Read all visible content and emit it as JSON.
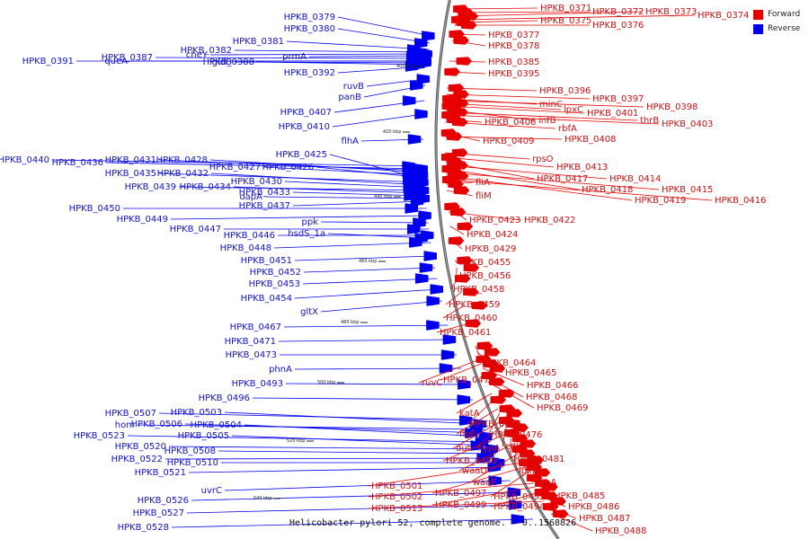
{
  "legend": {
    "forward": {
      "label": "Forward",
      "color": "#e60000"
    },
    "reverse": {
      "label": "Reverse",
      "color": "#0000ee"
    }
  },
  "caption": "Helicobacter pylori 52, complete genome. - 0..1568826",
  "ticks": [
    "400 kbp",
    "420 kbp",
    "440 kbp",
    "460 kbp",
    "480 kbp",
    "500 kbp",
    "520 kbp",
    "540 kbp"
  ],
  "reverse_genes": [
    "HPKB_0379",
    "HPKB_0380",
    "HPKB_0381",
    "cheY",
    "HPKB_0382",
    "prmA",
    "HPKB_0391",
    "queA",
    "HPKB_0387",
    "gidB",
    "HPKB_0388",
    "HPKB_0392",
    "ruvB",
    "panB",
    "HPKB_0407",
    "HPKB_0410",
    "flhA",
    "HPKB_0440",
    "HPKB_0436",
    "HPKB_0431",
    "HPKB_0428",
    "HPKB_0427",
    "HPKB_0426",
    "HPKB_0425",
    "HPKB_0435",
    "HPKB_0432",
    "HPKB_0430",
    "HPKB_0439",
    "HPKB_0434",
    "HPKB_0433",
    "dapA",
    "HPKB_0437",
    "HPKB_0450",
    "HPKB_0449",
    "ppk",
    "HPKB_0447",
    "HPKB_0446",
    "hsdS_1a",
    "HPKB_0448",
    "HPKB_0451",
    "HPKB_0452",
    "HPKB_0453",
    "HPKB_0454",
    "gltX",
    "HPKB_0467",
    "HPKB_0471",
    "HPKB_0473",
    "phnA",
    "HPKB_0493",
    "HPKB_0496",
    "HPKB_0507",
    "HPKB_0503",
    "hom",
    "HPKB_0506",
    "HPKB_0504",
    "HPKB_0523",
    "HPKB_0505",
    "HPKB_0520",
    "HPKB_0508",
    "HPKB_0522",
    "HPKB_0510",
    "HPKB_0521",
    "uvrC",
    "HPKB_0526",
    "HPKB_0527",
    "HPKB_0528"
  ],
  "forward_genes": [
    "HPKB_0371",
    "HPKB_0372",
    "HPKB_0373",
    "HPKB_0374",
    "HPKB_0375",
    "HPKB_0376",
    "HPKB_0377",
    "HPKB_0378",
    "HPKB_0385",
    "HPKB_0395",
    "HPKB_0396",
    "HPKB_0397",
    "minC",
    "HPKB_0398",
    "lpxC",
    "HPKB_0401",
    "infB",
    "thrB",
    "HPKB_0403",
    "HPKB_0406",
    "rbfA",
    "HPKB_0409",
    "HPKB_0408",
    "rpsO",
    "HPKB_0413",
    "HPKB_0417",
    "HPKB_0414",
    "HPKB_0418",
    "HPKB_0415",
    "HPKB_0419",
    "HPKB_0416",
    "fliA",
    "fliM",
    "HPKB_0423",
    "HPKB_0422",
    "HPKB_0424",
    "HPKB_0429",
    "HPKB_0455",
    "HPKB_0456",
    "HPKB_0458",
    "HPKB_0459",
    "HPKB_0460",
    "HPKB_0461",
    "HPKB_0464",
    "HPKB_0465",
    "ruvC",
    "HPKB_0470",
    "HPKB_0466",
    "HPKB_0468",
    "HPKB_0469",
    "katA",
    "HPKB_0475",
    "flgE",
    "HPKB_0476",
    "dut",
    "hypA",
    "cdh",
    "HPKB_0489",
    "HPKB_0481",
    "waaD",
    "lpxB",
    "waaE",
    "greA",
    "HPKB_0501",
    "HPKB_0497",
    "HPKB_0492",
    "HPKB_0485",
    "HPKB_0502",
    "HPKB_0499",
    "HPKB_0494",
    "HPKB_0486",
    "HPKB_0513",
    "HPKB_0487",
    "HPKB_0488"
  ]
}
